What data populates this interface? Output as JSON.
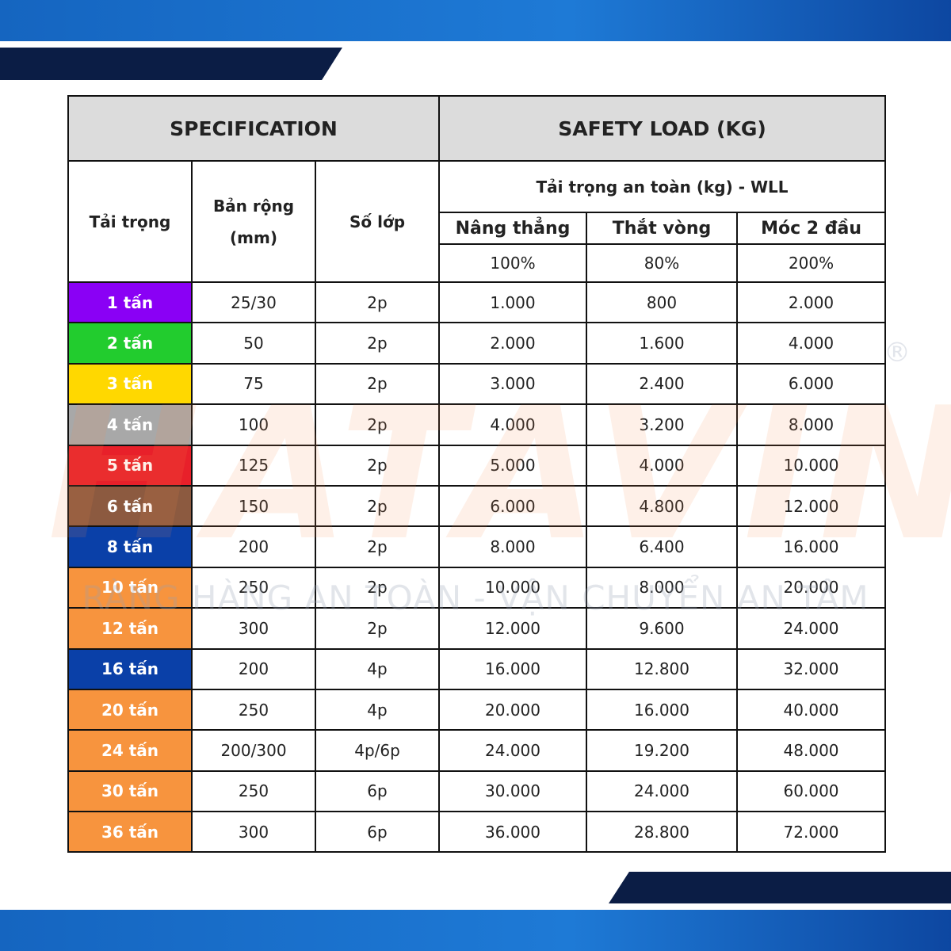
{
  "table": {
    "header": {
      "spec": "SPECIFICATION",
      "safety": "SAFETY LOAD (KG)"
    },
    "columns": {
      "load": "Tải trọng",
      "width": "Bản rộng (mm)",
      "plies": "Số lớp",
      "wll": "Tải trọng an toàn (kg) - WLL",
      "straight": "Nâng thẳng",
      "choke": "Thắt vòng",
      "basket": "Móc 2 đầu",
      "straight_pct": "100%",
      "choke_pct": "80%",
      "basket_pct": "200%"
    },
    "rows": [
      {
        "load": "1 tấn",
        "color": "#8a00f5",
        "width": "25/30",
        "plies": "2p",
        "straight": "1.000",
        "choke": "800",
        "basket": "2.000"
      },
      {
        "load": "2 tấn",
        "color": "#22cc2e",
        "width": "50",
        "plies": "2p",
        "straight": "2.000",
        "choke": "1.600",
        "basket": "4.000"
      },
      {
        "load": "3 tấn",
        "color": "#ffd800",
        "width": "75",
        "plies": "2p",
        "straight": "3.000",
        "choke": "2.400",
        "basket": "6.000"
      },
      {
        "load": "4 tấn",
        "color": "#a8a8a8",
        "width": "100",
        "plies": "2p",
        "straight": "4.000",
        "choke": "3.200",
        "basket": "8.000"
      },
      {
        "load": "5 tấn",
        "color": "#e8202a",
        "width": "125",
        "plies": "2p",
        "straight": "5.000",
        "choke": "4.000",
        "basket": "10.000"
      },
      {
        "load": "6 tấn",
        "color": "#8c5a40",
        "width": "150",
        "plies": "2p",
        "straight": "6.000",
        "choke": "4.800",
        "basket": "12.000"
      },
      {
        "load": "8 tấn",
        "color": "#0a40a8",
        "width": "200",
        "plies": "2p",
        "straight": "8.000",
        "choke": "6.400",
        "basket": "16.000"
      },
      {
        "load": "10 tấn",
        "color": "#f7943e",
        "width": "250",
        "plies": "2p",
        "straight": "10.000",
        "choke": "8.000",
        "basket": "20.000"
      },
      {
        "load": "12 tấn",
        "color": "#f7943e",
        "width": "300",
        "plies": "2p",
        "straight": "12.000",
        "choke": "9.600",
        "basket": "24.000"
      },
      {
        "load": "16 tấn",
        "color": "#0a40a8",
        "width": "200",
        "plies": "4p",
        "straight": "16.000",
        "choke": "12.800",
        "basket": "32.000"
      },
      {
        "load": "20 tấn",
        "color": "#f7943e",
        "width": "250",
        "plies": "4p",
        "straight": "20.000",
        "choke": "16.000",
        "basket": "40.000"
      },
      {
        "load": "24 tấn",
        "color": "#f7943e",
        "width": "200/300",
        "plies": "4p/6p",
        "straight": "24.000",
        "choke": "19.200",
        "basket": "48.000"
      },
      {
        "load": "30 tấn",
        "color": "#f7943e",
        "width": "250",
        "plies": "6p",
        "straight": "30.000",
        "choke": "24.000",
        "basket": "60.000"
      },
      {
        "load": "36 tấn",
        "color": "#f7943e",
        "width": "300",
        "plies": "6p",
        "straight": "36.000",
        "choke": "28.800",
        "basket": "72.000"
      }
    ]
  },
  "watermark": {
    "brand": "HATAVIN",
    "mark": "®",
    "tagline": "RÀNG HÀNG AN TOÀN - VẬN CHUYỂN AN TÂM"
  }
}
